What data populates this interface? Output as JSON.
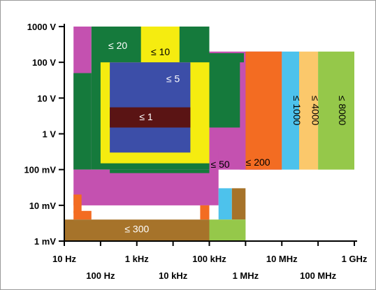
{
  "chart_data": {
    "type": "heatmap",
    "title": "",
    "xlabel": "",
    "ylabel": "",
    "x_scale": "log",
    "y_scale": "log",
    "xlim_hz": [
      10,
      1000000000
    ],
    "ylim_v": [
      0.001,
      1000
    ],
    "x_ticks": [
      {
        "value": 10,
        "label": "10 Hz",
        "row": 0
      },
      {
        "value": 100,
        "label": "100 Hz",
        "row": 1
      },
      {
        "value": 1000,
        "label": "1 kHz",
        "row": 0
      },
      {
        "value": 10000,
        "label": "10 kHz",
        "row": 1
      },
      {
        "value": 100000,
        "label": "100 kHz",
        "row": 0
      },
      {
        "value": 1000000,
        "label": "1 MHz",
        "row": 1
      },
      {
        "value": 10000000,
        "label": "10 MHz",
        "row": 0
      },
      {
        "value": 100000000,
        "label": "100 MHz",
        "row": 1
      },
      {
        "value": 1000000000,
        "label": "1 GHz",
        "row": 0
      }
    ],
    "y_ticks": [
      {
        "value": 1000,
        "label": "1000 V"
      },
      {
        "value": 100,
        "label": "100 V"
      },
      {
        "value": 10,
        "label": "10 V"
      },
      {
        "value": 1,
        "label": "1 V"
      },
      {
        "value": 0.1,
        "label": "100 mV"
      },
      {
        "value": 0.01,
        "label": "10 mV"
      },
      {
        "value": 0.001,
        "label": "1 mV"
      }
    ],
    "colors": {
      "le1": "#5a1414",
      "le5": "#3c4ea8",
      "le10": "#f5ec10",
      "le20": "#157a3c",
      "le50": "#c451b0",
      "le200": "#f36c22",
      "le300": "#a6732a",
      "le1000": "#4dc2ec",
      "le4000": "#fbc86b",
      "le8000": "#95c84a"
    },
    "regions": [
      {
        "color": "le50",
        "x": [
          18,
          56
        ],
        "y": [
          0.1,
          1000
        ]
      },
      {
        "color": "le20",
        "x": [
          56,
          100000
        ],
        "y": [
          0.1,
          1000
        ]
      },
      {
        "color": "le20",
        "x": [
          18,
          56
        ],
        "y": [
          0.1,
          50
        ]
      },
      {
        "color": "le50",
        "x": [
          100000,
          10000000
        ],
        "y": [
          0.1,
          200
        ]
      },
      {
        "color": "le20",
        "x": [
          100000,
          900000
        ],
        "y": [
          1.5,
          180
        ]
      },
      {
        "color": "le50",
        "x": [
          700000,
          3000000
        ],
        "y": [
          0.1,
          100
        ]
      },
      {
        "color": "le50",
        "x": [
          18,
          100000
        ],
        "y": [
          0.01,
          0.1
        ]
      },
      {
        "color": "le50",
        "x": [
          100000,
          180000
        ],
        "y": [
          0.01,
          0.35
        ]
      },
      {
        "color": "le20",
        "x": [
          180,
          100000
        ],
        "y": [
          0.08,
          0.1
        ]
      },
      {
        "color": "le200",
        "x": [
          1000000,
          10000000
        ],
        "y": [
          0.1,
          200
        ]
      },
      {
        "color": "le1000",
        "x": [
          10000000,
          30000000
        ],
        "y": [
          0.1,
          200
        ]
      },
      {
        "color": "le4000",
        "x": [
          30000000,
          100000000
        ],
        "y": [
          0.1,
          200
        ]
      },
      {
        "color": "le8000",
        "x": [
          100000000,
          1000000000
        ],
        "y": [
          0.1,
          200
        ]
      },
      {
        "color": "le10",
        "x": [
          1300,
          15000
        ],
        "y": [
          100,
          1000
        ]
      },
      {
        "color": "le10",
        "x": [
          100,
          100000
        ],
        "y": [
          0.15,
          100
        ]
      },
      {
        "color": "le5",
        "x": [
          180,
          30000
        ],
        "y": [
          0.3,
          100
        ]
      },
      {
        "color": "le1",
        "x": [
          180,
          30000
        ],
        "y": [
          1.5,
          5.5
        ]
      },
      {
        "color": "le200",
        "x": [
          18,
          30
        ],
        "y": [
          0.006,
          0.02
        ]
      },
      {
        "color": "le200",
        "x": [
          18,
          56
        ],
        "y": [
          0.004,
          0.007
        ]
      },
      {
        "color": "le200",
        "x": [
          56000,
          100000
        ],
        "y": [
          0.004,
          0.01
        ]
      },
      {
        "color": "le1000",
        "x": [
          180000,
          420000
        ],
        "y": [
          0.004,
          0.03
        ]
      },
      {
        "color": "le300",
        "x": [
          420000,
          1000000
        ],
        "y": [
          0.004,
          0.03
        ]
      },
      {
        "color": "le300",
        "x": [
          10,
          100000
        ],
        "y": [
          0.001,
          0.004
        ]
      },
      {
        "color": "le8000",
        "x": [
          100000,
          1000000
        ],
        "y": [
          0.001,
          0.004
        ]
      }
    ],
    "labels": [
      {
        "text": "≤ 20",
        "x": 300,
        "y": 300,
        "color": "#ffffff"
      },
      {
        "text": "≤ 10",
        "x": 4500,
        "y": 200,
        "color": "#000000"
      },
      {
        "text": "≤ 5",
        "x": 10000,
        "y": 35,
        "color": "#ffffff"
      },
      {
        "text": "≤ 1",
        "x": 1800,
        "y": 3,
        "color": "#ffffff"
      },
      {
        "text": "≤ 50",
        "x": 200000,
        "y": 0.14,
        "color": "#000000"
      },
      {
        "text": "≤ 200",
        "x": 2200000,
        "y": 0.16,
        "color": "#000000"
      },
      {
        "text": "≤ 300",
        "x": 1000,
        "y": 0.0022,
        "color": "#ffffff"
      },
      {
        "text": "≤ 1000",
        "x": 17000000,
        "y": 4.5,
        "color": "#000000",
        "rotate": true
      },
      {
        "text": "≤ 4000",
        "x": 55000000,
        "y": 4.5,
        "color": "#000000",
        "rotate": true
      },
      {
        "text": "≤ 8000",
        "x": 300000000,
        "y": 4.5,
        "color": "#000000",
        "rotate": true
      }
    ]
  }
}
